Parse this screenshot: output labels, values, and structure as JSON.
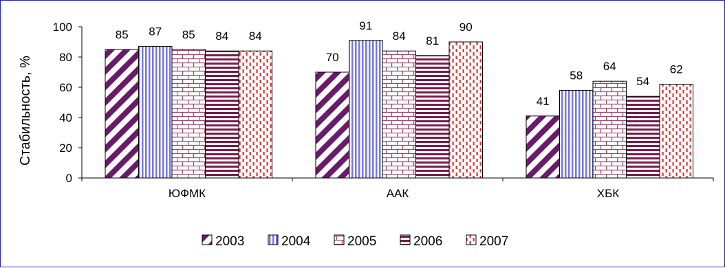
{
  "chart_data": {
    "type": "bar",
    "categories": [
      "ЮФМК",
      "ААК",
      "ХБК"
    ],
    "series": [
      {
        "name": "2003",
        "values": [
          85,
          70,
          41
        ],
        "color": "#6b1a6b",
        "pattern": "diagonal"
      },
      {
        "name": "2004",
        "values": [
          87,
          91,
          58
        ],
        "color": "#7777e0",
        "pattern": "vertical"
      },
      {
        "name": "2005",
        "values": [
          85,
          84,
          64
        ],
        "color": "#9a4a6a",
        "pattern": "brick"
      },
      {
        "name": "2006",
        "values": [
          84,
          81,
          54
        ],
        "color": "#7a1a4a",
        "pattern": "horizontal"
      },
      {
        "name": "2007",
        "values": [
          84,
          90,
          62
        ],
        "color": "#e03030",
        "pattern": "dashed-vertical"
      }
    ],
    "ylabel": "Стабильность, %",
    "xlabel": "",
    "title": "",
    "ylim": [
      0,
      100
    ],
    "yticks": [
      "0",
      "20",
      "40",
      "60",
      "80",
      "100"
    ],
    "legend_position": "bottom",
    "grid": false
  }
}
